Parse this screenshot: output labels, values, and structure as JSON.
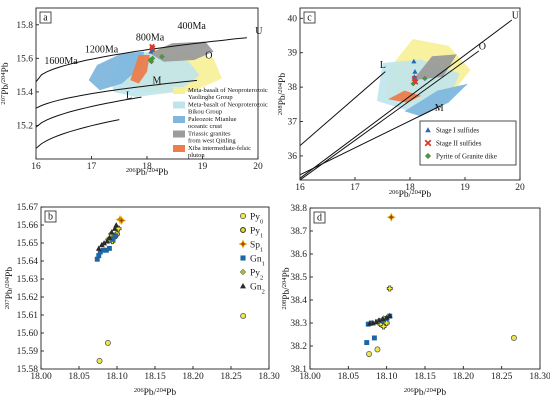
{
  "colors": {
    "yellow": "#f7ef95",
    "cyan": "#bfe4ec",
    "blue": "#7fb7dd",
    "gray": "#9b9b9b",
    "orange": "#ec7d4c",
    "stage1": "#2a66b0",
    "stage2": "#d83a2e",
    "pyrite": "#43a02f",
    "py0": "#e9e64e",
    "py1": "#f5ea2a",
    "sp1": "#b03a1c",
    "gn1": "#1c67a3",
    "py2": "#a4b73e",
    "gn2": "#2a2a2a"
  },
  "chart_data": [
    {
      "id": "a",
      "panel_label": "a",
      "type": "scatter",
      "xlim": [
        16,
        20
      ],
      "ylim": [
        15.0,
        15.9
      ],
      "xticks": [
        16,
        17,
        18,
        19,
        20
      ],
      "yticks": [
        15.2,
        15.4,
        15.6,
        15.8
      ],
      "xtick_labels": [
        "16",
        "17",
        "18",
        "19",
        "20"
      ],
      "ytick_labels": [
        "15.2",
        "15.4",
        "15.6",
        "15.8"
      ],
      "xlabel_parts": [
        "206",
        "Pb/",
        "204",
        "Pb"
      ],
      "ylabel_parts": [
        "207",
        "Pb/",
        "204",
        "Pb"
      ],
      "curve_labels": [
        "U",
        "O",
        "M",
        "L"
      ],
      "age_labels": [
        "400Ma",
        "800Ma",
        "1200Ma",
        "1600Ma"
      ],
      "fields": [
        {
          "label": "Meta-basalt of Neoproterozoic Yaolinghe Group",
          "color": "yellow"
        },
        {
          "label": "Meta-basalt of Neoproterozoic Bikou Group",
          "color": "cyan"
        },
        {
          "label": "Paleozoic Mianlue oceanic crust",
          "color": "blue"
        },
        {
          "label": "Triassic granites from west Qinling",
          "color": "gray"
        },
        {
          "label": "Xiba intermediate-felsic pluton",
          "color": "orange"
        }
      ],
      "points": {
        "stage1": [
          [
            18.07,
            15.64
          ],
          [
            18.08,
            15.66
          ],
          [
            18.1,
            15.65
          ]
        ],
        "stage2": [
          [
            18.09,
            15.67
          ],
          [
            18.1,
            15.66
          ]
        ],
        "pyrite": [
          [
            18.1,
            15.6
          ],
          [
            18.27,
            15.61
          ],
          [
            18.08,
            15.58
          ],
          [
            18.06,
            15.59
          ]
        ]
      }
    },
    {
      "id": "c",
      "panel_label": "c",
      "type": "scatter",
      "xlim": [
        16,
        20
      ],
      "ylim": [
        35.3,
        40.3
      ],
      "xticks": [
        16,
        17,
        18,
        19,
        20
      ],
      "yticks": [
        36,
        37,
        38,
        39,
        40
      ],
      "xtick_labels": [
        "16",
        "17",
        "18",
        "19",
        "20"
      ],
      "ytick_labels": [
        "36",
        "37",
        "38",
        "39",
        "40"
      ],
      "xlabel_parts": [
        "206",
        "Pb/",
        "204",
        "Pb"
      ],
      "ylabel_parts": [
        "208",
        "Pb/",
        "204",
        "Pb"
      ],
      "curve_labels": [
        "U",
        "O",
        "L",
        "M"
      ],
      "legend": [
        {
          "label": "Stage I sulfides",
          "marker": "triangle",
          "color": "stage1"
        },
        {
          "label": "Stage II sulfides",
          "marker": "cross",
          "color": "stage2"
        },
        {
          "label": "Pyrite of Granite dike",
          "marker": "diamond",
          "color": "pyrite"
        }
      ],
      "points": {
        "stage1": [
          [
            18.07,
            38.75
          ],
          [
            18.09,
            38.45
          ],
          [
            18.08,
            38.3
          ]
        ],
        "stage2": [
          [
            18.1,
            38.15
          ],
          [
            18.08,
            38.25
          ]
        ],
        "pyrite": [
          [
            18.1,
            38.2
          ],
          [
            18.27,
            38.25
          ],
          [
            18.06,
            38.1
          ]
        ]
      }
    },
    {
      "id": "b",
      "panel_label": "b",
      "type": "scatter",
      "xlim": [
        18.0,
        18.3
      ],
      "ylim": [
        15.58,
        15.67
      ],
      "xticks": [
        18.0,
        18.05,
        18.1,
        18.15,
        18.2,
        18.25,
        18.3
      ],
      "xtick_labels": [
        "18.00",
        "18.05",
        "18.10",
        "18.15",
        "18.20",
        "18.25",
        "18.30"
      ],
      "yticks": [
        15.58,
        15.59,
        15.6,
        15.61,
        15.62,
        15.63,
        15.64,
        15.65,
        15.66,
        15.67
      ],
      "ytick_labels": [
        "15.58",
        "15.59",
        "15.60",
        "15.61",
        "15.62",
        "15.63",
        "15.64",
        "15.65",
        "15.66",
        "15.67"
      ],
      "xlabel_parts": [
        "206",
        "Pb/",
        "204",
        "Pb"
      ],
      "ylabel_parts": [
        "207",
        "Pb/",
        "204",
        "Pb"
      ],
      "legend": [
        {
          "base": "Py",
          "sub": "0",
          "marker": "circle",
          "color": "py0"
        },
        {
          "base": "Py",
          "sub": "1",
          "marker": "cross",
          "color": "py1"
        },
        {
          "base": "Sp",
          "sub": "1",
          "marker": "star",
          "color": "sp1"
        },
        {
          "base": "Gn",
          "sub": "1",
          "marker": "square",
          "color": "gn1"
        },
        {
          "base": "Py",
          "sub": "2",
          "marker": "diamond",
          "color": "py2"
        },
        {
          "base": "Gn",
          "sub": "2",
          "marker": "triangle",
          "color": "gn2"
        }
      ],
      "series": [
        {
          "key": "py0",
          "marker": "circle",
          "color": "py0",
          "points": [
            [
              18.077,
              15.5845
            ],
            [
              18.088,
              15.5945
            ],
            [
              18.266,
              15.6095
            ]
          ]
        },
        {
          "key": "py1",
          "marker": "cross",
          "color": "py1",
          "points": [
            [
              18.1,
              15.655
            ],
            [
              18.102,
              15.658
            ],
            [
              18.096,
              15.653
            ],
            [
              18.094,
              15.651
            ]
          ]
        },
        {
          "key": "sp1",
          "marker": "star",
          "color": "sp1",
          "points": [
            [
              18.104,
              15.663
            ],
            [
              18.106,
              15.6625
            ]
          ]
        },
        {
          "key": "gn1",
          "marker": "square",
          "color": "gn1",
          "points": [
            [
              18.074,
              15.641
            ],
            [
              18.076,
              15.643
            ],
            [
              18.078,
              15.645
            ],
            [
              18.082,
              15.646
            ],
            [
              18.086,
              15.646
            ],
            [
              18.09,
              15.647
            ],
            [
              18.094,
              15.652
            ],
            [
              18.098,
              15.654
            ]
          ]
        },
        {
          "key": "py2",
          "marker": "diamond",
          "color": "py2",
          "points": [
            [
              18.088,
              15.652
            ],
            [
              18.092,
              15.655
            ]
          ]
        },
        {
          "key": "gn2",
          "marker": "triangle",
          "color": "gn2",
          "points": [
            [
              18.076,
              15.647
            ],
            [
              18.08,
              15.649
            ],
            [
              18.083,
              15.65
            ],
            [
              18.087,
              15.651
            ],
            [
              18.09,
              15.653
            ],
            [
              18.093,
              15.656
            ],
            [
              18.097,
              15.658
            ],
            [
              18.099,
              15.66
            ]
          ]
        }
      ]
    },
    {
      "id": "d",
      "panel_label": "d",
      "type": "scatter",
      "xlim": [
        18.0,
        18.3
      ],
      "ylim": [
        38.1,
        38.8
      ],
      "xticks": [
        18.0,
        18.05,
        18.1,
        18.15,
        18.2,
        18.25,
        18.3
      ],
      "xtick_labels": [
        "18.00",
        "18.05",
        "18.10",
        "18.15",
        "18.20",
        "18.25",
        "18.30"
      ],
      "yticks": [
        38.1,
        38.2,
        38.3,
        38.4,
        38.5,
        38.6,
        38.7,
        38.8
      ],
      "ytick_labels": [
        "38.1",
        "38.2",
        "38.3",
        "38.4",
        "38.5",
        "38.6",
        "38.7",
        "38.8"
      ],
      "xlabel_parts": [
        "206",
        "Pb/",
        "204",
        "Pb"
      ],
      "ylabel_parts": [
        "208",
        "Pb/",
        "204",
        "Pb"
      ],
      "series": [
        {
          "key": "py0",
          "marker": "circle",
          "color": "py0",
          "points": [
            [
              18.077,
              38.165
            ],
            [
              18.088,
              38.185
            ],
            [
              18.266,
              38.235
            ]
          ]
        },
        {
          "key": "py1",
          "marker": "cross",
          "color": "py1",
          "points": [
            [
              18.104,
              38.45
            ],
            [
              18.092,
              38.295
            ],
            [
              18.096,
              38.285
            ],
            [
              18.1,
              38.3
            ]
          ]
        },
        {
          "key": "sp1",
          "marker": "star",
          "color": "sp1",
          "points": [
            [
              18.106,
              38.76
            ]
          ]
        },
        {
          "key": "gn1",
          "marker": "square",
          "color": "gn1",
          "points": [
            [
              18.074,
              38.215
            ],
            [
              18.084,
              38.235
            ],
            [
              18.076,
              38.295
            ],
            [
              18.08,
              38.3
            ],
            [
              18.088,
              38.305
            ],
            [
              18.094,
              38.31
            ],
            [
              18.1,
              38.32
            ],
            [
              18.104,
              38.33
            ]
          ]
        },
        {
          "key": "py2",
          "marker": "diamond",
          "color": "py2",
          "points": [
            [
              18.09,
              38.31
            ],
            [
              18.096,
              38.32
            ]
          ]
        },
        {
          "key": "gn2",
          "marker": "triangle",
          "color": "gn2",
          "points": [
            [
              18.078,
              38.298
            ],
            [
              18.082,
              38.3
            ],
            [
              18.086,
              38.305
            ],
            [
              18.09,
              38.312
            ],
            [
              18.095,
              38.318
            ],
            [
              18.1,
              38.324
            ],
            [
              18.104,
              38.332
            ]
          ]
        }
      ]
    }
  ]
}
